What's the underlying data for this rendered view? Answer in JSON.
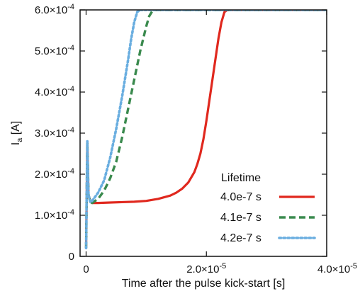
{
  "chart_data": {
    "type": "line",
    "xlabel": "Time after the pulse kick-start [s]",
    "ylabel": "I",
    "ylabel_sub": "a",
    "ylabel_unit": " [A]",
    "xlim": [
      -1e-06,
      4e-05
    ],
    "ylim": [
      0,
      0.0006
    ],
    "x_ticks": [
      {
        "value": 0,
        "mant": "0",
        "exp": ""
      },
      {
        "value": 2e-05,
        "mant": "2.0×10",
        "exp": "-5"
      },
      {
        "value": 4e-05,
        "mant": "4.0×10",
        "exp": "-5"
      }
    ],
    "y_ticks": [
      {
        "value": 0,
        "mant": "0",
        "exp": ""
      },
      {
        "value": 0.0001,
        "mant": "1.0×10",
        "exp": "-4"
      },
      {
        "value": 0.0002,
        "mant": "2.0×10",
        "exp": "-4"
      },
      {
        "value": 0.0003,
        "mant": "3.0×10",
        "exp": "-4"
      },
      {
        "value": 0.0004,
        "mant": "4.0×10",
        "exp": "-4"
      },
      {
        "value": 0.0005,
        "mant": "5.0×10",
        "exp": "-4"
      },
      {
        "value": 0.0006,
        "mant": "6.0×10",
        "exp": "-4"
      }
    ],
    "legend": {
      "title": "Lifetime",
      "position": "bottom-right"
    },
    "series": [
      {
        "name": "4.0e-7 s",
        "color": "#e0281e",
        "dash": "solid",
        "x": [
          0,
          2e-07,
          4e-07,
          7e-07,
          1e-06,
          2e-06,
          4e-06,
          6e-06,
          8e-06,
          1e-05,
          1.2e-05,
          1.4e-05,
          1.5e-05,
          1.6e-05,
          1.7e-05,
          1.8e-05,
          1.85e-05,
          1.9e-05,
          1.95e-05,
          2e-05,
          2.05e-05,
          2.1e-05,
          2.15e-05,
          2.2e-05,
          2.25e-05,
          2.3e-05,
          2.35e-05,
          4e-05
        ],
        "y": [
          2e-05,
          0.00028,
          0.00015,
          0.000135,
          0.00013,
          0.00013,
          0.000131,
          0.000132,
          0.000133,
          0.000135,
          0.00014,
          0.000148,
          0.000155,
          0.000165,
          0.00018,
          0.000205,
          0.000225,
          0.00025,
          0.000285,
          0.00033,
          0.00038,
          0.00043,
          0.00048,
          0.00053,
          0.00057,
          0.000595,
          0.0006,
          0.0006
        ]
      },
      {
        "name": "4.1e-7 s",
        "color": "#3a8a4e",
        "dash": "dashed",
        "x": [
          0,
          2e-07,
          4e-07,
          7e-07,
          1e-06,
          2e-06,
          3e-06,
          4e-06,
          5e-06,
          6e-06,
          7e-06,
          8e-06,
          9e-06,
          1e-05,
          1.05e-05,
          1.1e-05,
          1.15e-05,
          1.2e-05,
          4e-05
        ],
        "y": [
          2e-05,
          0.00028,
          0.00015,
          0.000132,
          0.00013,
          0.00014,
          0.00016,
          0.00019,
          0.00023,
          0.00029,
          0.00036,
          0.00043,
          0.0005,
          0.00056,
          0.000585,
          0.000597,
          0.0006,
          0.0006,
          0.0006
        ]
      },
      {
        "name": "4.2e-7 s",
        "color": "#6aaee0",
        "dash": "dotted",
        "x": [
          0,
          2e-07,
          4e-07,
          7e-07,
          1e-06,
          2e-06,
          3e-06,
          4e-06,
          5e-06,
          6e-06,
          7e-06,
          7.5e-06,
          8e-06,
          8.5e-06,
          9e-06,
          4e-05
        ],
        "y": [
          2e-05,
          0.00028,
          0.00015,
          0.000132,
          0.000135,
          0.000155,
          0.000185,
          0.00024,
          0.00031,
          0.00039,
          0.00048,
          0.00053,
          0.00057,
          0.000595,
          0.0006,
          0.0006
        ]
      }
    ]
  }
}
